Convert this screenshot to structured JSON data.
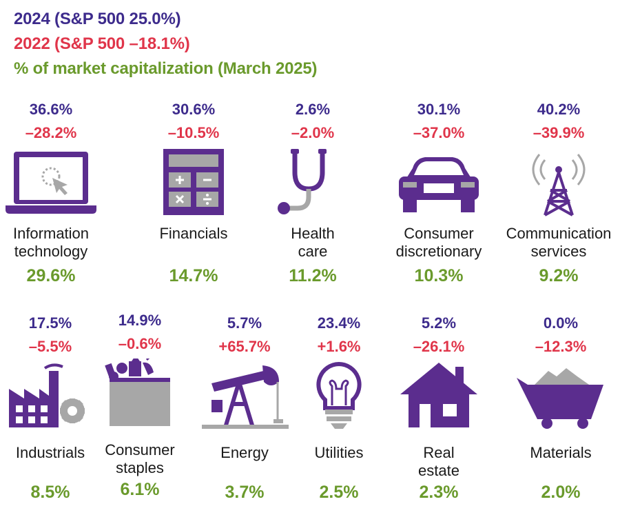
{
  "colors": {
    "y2024": "#3d2b8c",
    "y2022": "#e0354a",
    "cap": "#6a9a2c",
    "icon": "#5b2d8e",
    "gray": "#a7a7a7"
  },
  "legend": {
    "y2024": "2024 (S&P 500  25.0%)",
    "y2022": "2022 (S&P 500 –18.1%)",
    "cap": "% of market capitalization (March 2025)"
  },
  "chart_data": {
    "type": "table",
    "series": [
      {
        "name": "2024 (S&P 500  25.0%)",
        "unit": "%",
        "index_value": 25.0
      },
      {
        "name": "2022 (S&P 500 –18.1%)",
        "unit": "%",
        "index_value": -18.1
      },
      {
        "name": "% of market capitalization (March 2025)",
        "unit": "%"
      }
    ],
    "sectors": [
      {
        "name": "Information\ntechnology",
        "icon": "laptop-cursor-icon",
        "y2024": "36.6%",
        "y2022": "–28.2%",
        "cap": "29.6%"
      },
      {
        "name": "Financials",
        "icon": "calculator-icon",
        "y2024": "30.6%",
        "y2022": "–10.5%",
        "cap": "14.7%"
      },
      {
        "name": "Health\ncare",
        "icon": "stethoscope-icon",
        "y2024": "2.6%",
        "y2022": "–2.0%",
        "cap": "11.2%"
      },
      {
        "name": "Consumer\ndiscretionary",
        "icon": "car-icon",
        "y2024": "30.1%",
        "y2022": "–37.0%",
        "cap": "10.3%"
      },
      {
        "name": "Communication\nservices",
        "icon": "radio-tower-icon",
        "y2024": "40.2%",
        "y2022": "–39.9%",
        "cap": "9.2%"
      },
      {
        "name": "Industrials",
        "icon": "factory-icon",
        "y2024": "17.5%",
        "y2022": "–5.5%",
        "cap": "8.5%"
      },
      {
        "name": "Consumer\nstaples",
        "icon": "grocery-bag-icon",
        "y2024": "14.9%",
        "y2022": "–0.6%",
        "cap": "6.1%"
      },
      {
        "name": "Energy",
        "icon": "oil-pump-icon",
        "y2024": "5.7%",
        "y2022": "+65.7%",
        "cap": "3.7%"
      },
      {
        "name": "Utilities",
        "icon": "light-bulb-icon",
        "y2024": "23.4%",
        "y2022": "+1.6%",
        "cap": "2.5%"
      },
      {
        "name": "Real\nestate",
        "icon": "house-icon",
        "y2024": "5.2%",
        "y2022": "–26.1%",
        "cap": "2.3%"
      },
      {
        "name": "Materials",
        "icon": "mine-cart-icon",
        "y2024": "0.0%",
        "y2022": "–12.3%",
        "cap": "2.0%"
      }
    ]
  }
}
